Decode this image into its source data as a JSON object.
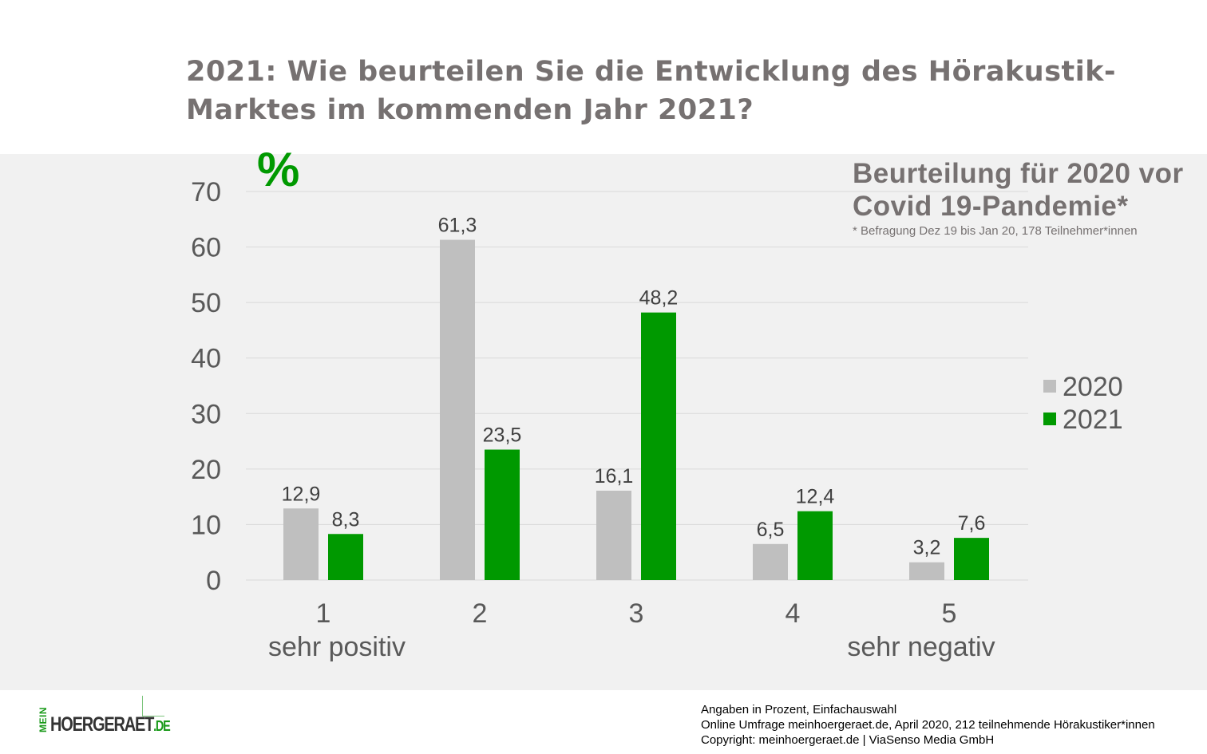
{
  "title": {
    "line1": "2021: Wie beurteilen Sie die Entwicklung des Hörakustik-",
    "line2": "Marktes im kommenden Jahr 2021?"
  },
  "chart_data": {
    "type": "bar",
    "unit_label": "%",
    "categories": [
      "1",
      "2",
      "3",
      "4",
      "5"
    ],
    "category_sublabels": {
      "first": "sehr positiv",
      "last": "sehr negativ"
    },
    "series": [
      {
        "name": "2020",
        "color": "#bfbfbf",
        "values": [
          12.9,
          61.3,
          16.1,
          6.5,
          3.2
        ],
        "labels": [
          "12,9",
          "61,3",
          "16,1",
          "6,5",
          "3,2"
        ]
      },
      {
        "name": "2021",
        "color": "#009900",
        "values": [
          8.3,
          23.5,
          48.2,
          12.4,
          7.6
        ],
        "labels": [
          "8,3",
          "23,5",
          "48,2",
          "12,4",
          "7,6"
        ]
      }
    ],
    "ylim": [
      0,
      70
    ],
    "yticks": [
      0,
      10,
      20,
      30,
      40,
      50,
      60,
      70
    ],
    "grid": true,
    "legend": "right"
  },
  "note": {
    "heading1": "Beurteilung für 2020 vor",
    "heading2": "Covid 19-Pandemie*",
    "sub": "* Befragung Dez 19 bis Jan 20, 178 Teilnehmer*innen"
  },
  "footer": {
    "line1": "Angaben in Prozent,  Einfachauswahl",
    "line2": "Online Umfrage meinhoergeraet.de, April 2020, 212 teilnehmende  Hörakustiker*innen",
    "line3": "Copyright: meinhoergeraet.de | ViaSenso Media GmbH"
  },
  "logo": {
    "mein": "MEIN",
    "brand": "HOERGERAET",
    "tld": ".DE"
  }
}
